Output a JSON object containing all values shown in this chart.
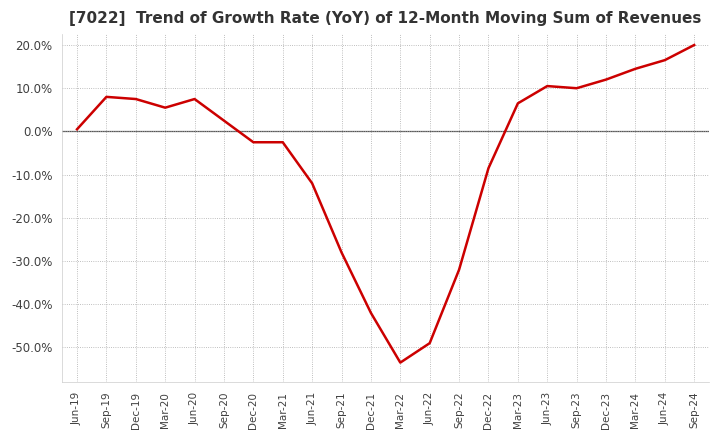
{
  "title": "[7022]  Trend of Growth Rate (YoY) of 12-Month Moving Sum of Revenues",
  "title_fontsize": 11,
  "background_color": "#ffffff",
  "plot_bg_color": "#ffffff",
  "line_color": "#cc0000",
  "ylim": [
    -0.58,
    0.225
  ],
  "yticks": [
    0.2,
    0.1,
    0.0,
    -0.1,
    -0.2,
    -0.3,
    -0.4,
    -0.5
  ],
  "dates": [
    "Jun-19",
    "Sep-19",
    "Dec-19",
    "Mar-20",
    "Jun-20",
    "Sep-20",
    "Dec-20",
    "Mar-21",
    "Jun-21",
    "Sep-21",
    "Dec-21",
    "Mar-22",
    "Jun-22",
    "Sep-22",
    "Dec-22",
    "Mar-23",
    "Jun-23",
    "Sep-23",
    "Dec-23",
    "Mar-24",
    "Jun-24",
    "Sep-24"
  ],
  "values": [
    0.005,
    0.08,
    0.075,
    0.055,
    0.075,
    0.025,
    -0.025,
    -0.025,
    -0.12,
    -0.28,
    -0.42,
    -0.535,
    -0.49,
    -0.32,
    -0.085,
    0.065,
    0.105,
    0.1,
    0.12,
    0.145,
    0.165,
    0.2
  ]
}
